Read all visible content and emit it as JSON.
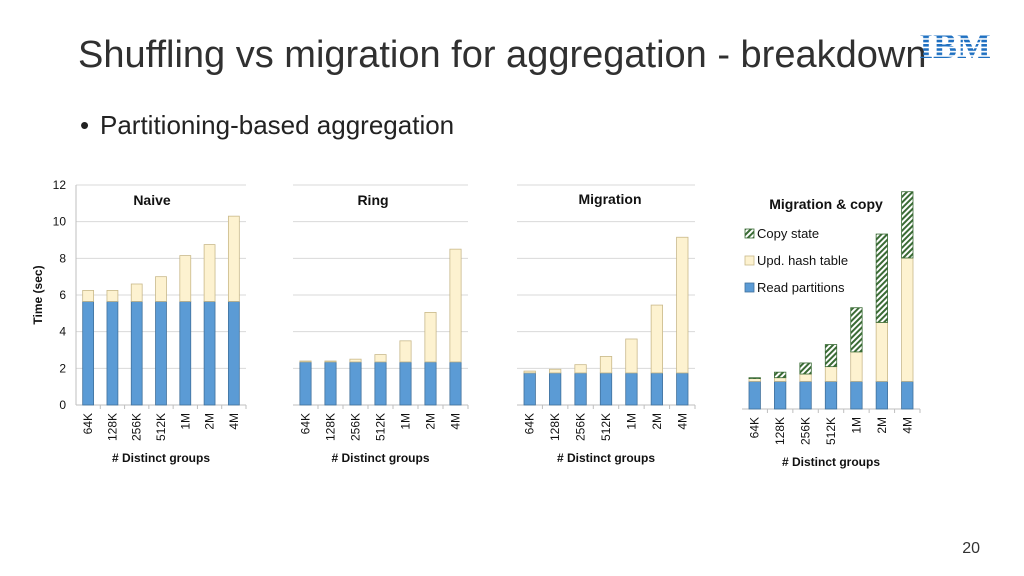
{
  "slide": {
    "title": "Shuffling vs migration for aggregation - breakdown",
    "bullet": "Partitioning-based aggregation",
    "page_number": "20",
    "logo_text": "IBM"
  },
  "colors": {
    "read_partitions": "#5b9bd5",
    "upd_hash_table": "#fdf2d0",
    "copy_state_fill": "#ffffff",
    "copy_state_stripe": "#3a6b35",
    "gridline": "#d9d9d9",
    "axis": "#bfbfbf",
    "logo": "#1f70c1"
  },
  "chart_data": [
    {
      "type": "bar",
      "stacked": true,
      "title": "Naive",
      "xlabel": "# Distinct groups",
      "ylabel": "Time (sec)",
      "ylim": [
        0,
        12
      ],
      "yticks": [
        0,
        2,
        4,
        6,
        8,
        10,
        12
      ],
      "grid": true,
      "categories": [
        "64K",
        "128K",
        "256K",
        "512K",
        "1M",
        "2M",
        "4M"
      ],
      "series": [
        {
          "key": "read_partitions",
          "values": [
            5.65,
            5.65,
            5.65,
            5.65,
            5.65,
            5.65,
            5.65
          ]
        },
        {
          "key": "upd_hash_table",
          "values": [
            0.6,
            0.6,
            0.95,
            1.35,
            2.5,
            3.1,
            4.65
          ]
        }
      ]
    },
    {
      "type": "bar",
      "stacked": true,
      "title": "Ring",
      "xlabel": "# Distinct groups",
      "ylim": [
        0,
        12
      ],
      "grid": true,
      "categories": [
        "64K",
        "128K",
        "256K",
        "512K",
        "1M",
        "2M",
        "4M"
      ],
      "series": [
        {
          "key": "read_partitions",
          "values": [
            2.35,
            2.35,
            2.35,
            2.35,
            2.35,
            2.35,
            2.35
          ]
        },
        {
          "key": "upd_hash_table",
          "values": [
            0.05,
            0.05,
            0.15,
            0.4,
            1.15,
            2.7,
            6.15
          ]
        }
      ]
    },
    {
      "type": "bar",
      "stacked": true,
      "title": "Migration",
      "xlabel": "# Distinct groups",
      "ylim": [
        0,
        12
      ],
      "grid": true,
      "categories": [
        "64K",
        "128K",
        "256K",
        "512K",
        "1M",
        "2M",
        "4M"
      ],
      "series": [
        {
          "key": "read_partitions",
          "values": [
            1.75,
            1.75,
            1.75,
            1.75,
            1.75,
            1.75,
            1.75
          ]
        },
        {
          "key": "upd_hash_table",
          "values": [
            0.1,
            0.2,
            0.45,
            0.9,
            1.85,
            3.7,
            7.4
          ]
        }
      ]
    },
    {
      "type": "bar",
      "stacked": true,
      "title": "Migration & copy",
      "xlabel": "# Distinct groups",
      "ylim": [
        0,
        12
      ],
      "grid": false,
      "legend_position": "right",
      "categories": [
        "64K",
        "128K",
        "256K",
        "512K",
        "1M",
        "2M",
        "4M"
      ],
      "series": [
        {
          "name": "Read partitions",
          "key": "read_partitions",
          "values": [
            1.5,
            1.5,
            1.5,
            1.5,
            1.5,
            1.5,
            1.5
          ]
        },
        {
          "name": "Upd. hash table",
          "key": "upd_hash_table",
          "values": [
            0.15,
            0.2,
            0.4,
            0.8,
            1.6,
            3.2,
            6.7
          ]
        },
        {
          "name": "Copy state",
          "key": "copy_state",
          "values": [
            0.05,
            0.3,
            0.6,
            1.2,
            2.4,
            4.8,
            3.6
          ]
        }
      ],
      "legend_order": [
        "Copy state",
        "Upd. hash table",
        "Read partitions"
      ]
    }
  ]
}
